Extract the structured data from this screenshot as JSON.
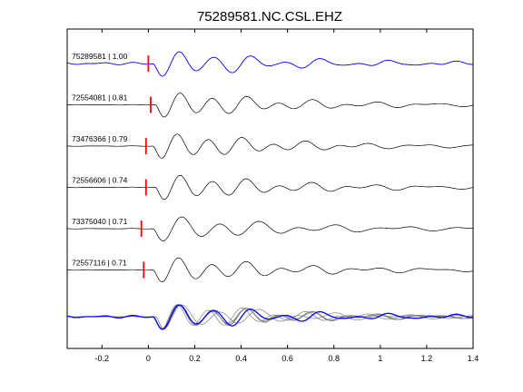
{
  "chart_data": {
    "type": "line",
    "title": "75289581.NC.CSL.EHZ",
    "xlabel": "",
    "ylabel": "",
    "xlim": [
      -0.35,
      1.4
    ],
    "xticks": [
      -0.2,
      0,
      0.2,
      0.4,
      0.6,
      0.8,
      1,
      1.2,
      1.4
    ],
    "xtick_labels": [
      "-0.2",
      "0",
      "0.2",
      "0.4",
      "0.6",
      "0.8",
      "1",
      "1.2",
      "1.4"
    ],
    "grid": false,
    "colors": {
      "reference": "#0000ff",
      "trace": "#000000",
      "pick": "#ff0000",
      "overlay": "#808080"
    },
    "series": [
      {
        "label": "75289581 | 1.00",
        "pick_time": 0.0,
        "dominant_hz": 6.5,
        "noise": 0.15,
        "p_amp": 1.0,
        "onset": 0.02,
        "reference": true
      },
      {
        "label": "72554081 | 0.81",
        "pick_time": 0.01,
        "dominant_hz": 7.0,
        "noise": 0.03,
        "p_amp": 1.0,
        "onset": 0.03,
        "reference": false
      },
      {
        "label": "73476366 | 0.79",
        "pick_time": -0.01,
        "dominant_hz": 7.2,
        "noise": 0.03,
        "p_amp": 1.0,
        "onset": 0.02,
        "reference": false
      },
      {
        "label": "72556606 | 0.74",
        "pick_time": -0.01,
        "dominant_hz": 7.0,
        "noise": 0.03,
        "p_amp": 1.0,
        "onset": 0.03,
        "reference": false
      },
      {
        "label": "73375040 | 0.71",
        "pick_time": -0.03,
        "dominant_hz": 6.0,
        "noise": 0.03,
        "p_amp": 1.0,
        "onset": 0.02,
        "reference": false
      },
      {
        "label": "72557116 | 0.71",
        "pick_time": -0.02,
        "dominant_hz": 6.8,
        "noise": 0.03,
        "p_amp": 1.0,
        "onset": 0.02,
        "reference": false
      }
    ],
    "stack": {
      "label": "",
      "pick_time": 0.0
    }
  }
}
